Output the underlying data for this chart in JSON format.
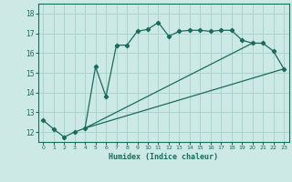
{
  "xlabel": "Humidex (Indice chaleur)",
  "bg_color": "#cce9e5",
  "grid_color": "#aad4ce",
  "line_color": "#1a6b5a",
  "xlim": [
    -0.5,
    23.5
  ],
  "ylim": [
    11.5,
    18.5
  ],
  "xticks": [
    0,
    1,
    2,
    3,
    4,
    5,
    6,
    7,
    8,
    9,
    10,
    11,
    12,
    13,
    14,
    15,
    16,
    17,
    18,
    19,
    20,
    21,
    22,
    23
  ],
  "yticks": [
    12,
    13,
    14,
    15,
    16,
    17,
    18
  ],
  "line1_x": [
    0,
    1,
    2,
    3,
    4,
    5,
    6,
    7,
    8,
    9,
    10,
    11,
    12,
    13,
    14,
    15,
    16,
    17,
    18,
    19,
    20,
    21,
    22,
    23
  ],
  "line1_y": [
    12.6,
    12.15,
    11.75,
    12.0,
    12.2,
    15.3,
    13.8,
    16.4,
    16.4,
    17.1,
    17.2,
    17.55,
    16.85,
    17.1,
    17.15,
    17.15,
    17.1,
    17.15,
    17.15,
    16.65,
    16.5,
    16.5,
    16.1,
    15.2
  ],
  "line2_x": [
    4,
    23
  ],
  "line2_y": [
    12.2,
    15.2
  ],
  "line3_x": [
    4,
    20
  ],
  "line3_y": [
    12.2,
    16.5
  ]
}
